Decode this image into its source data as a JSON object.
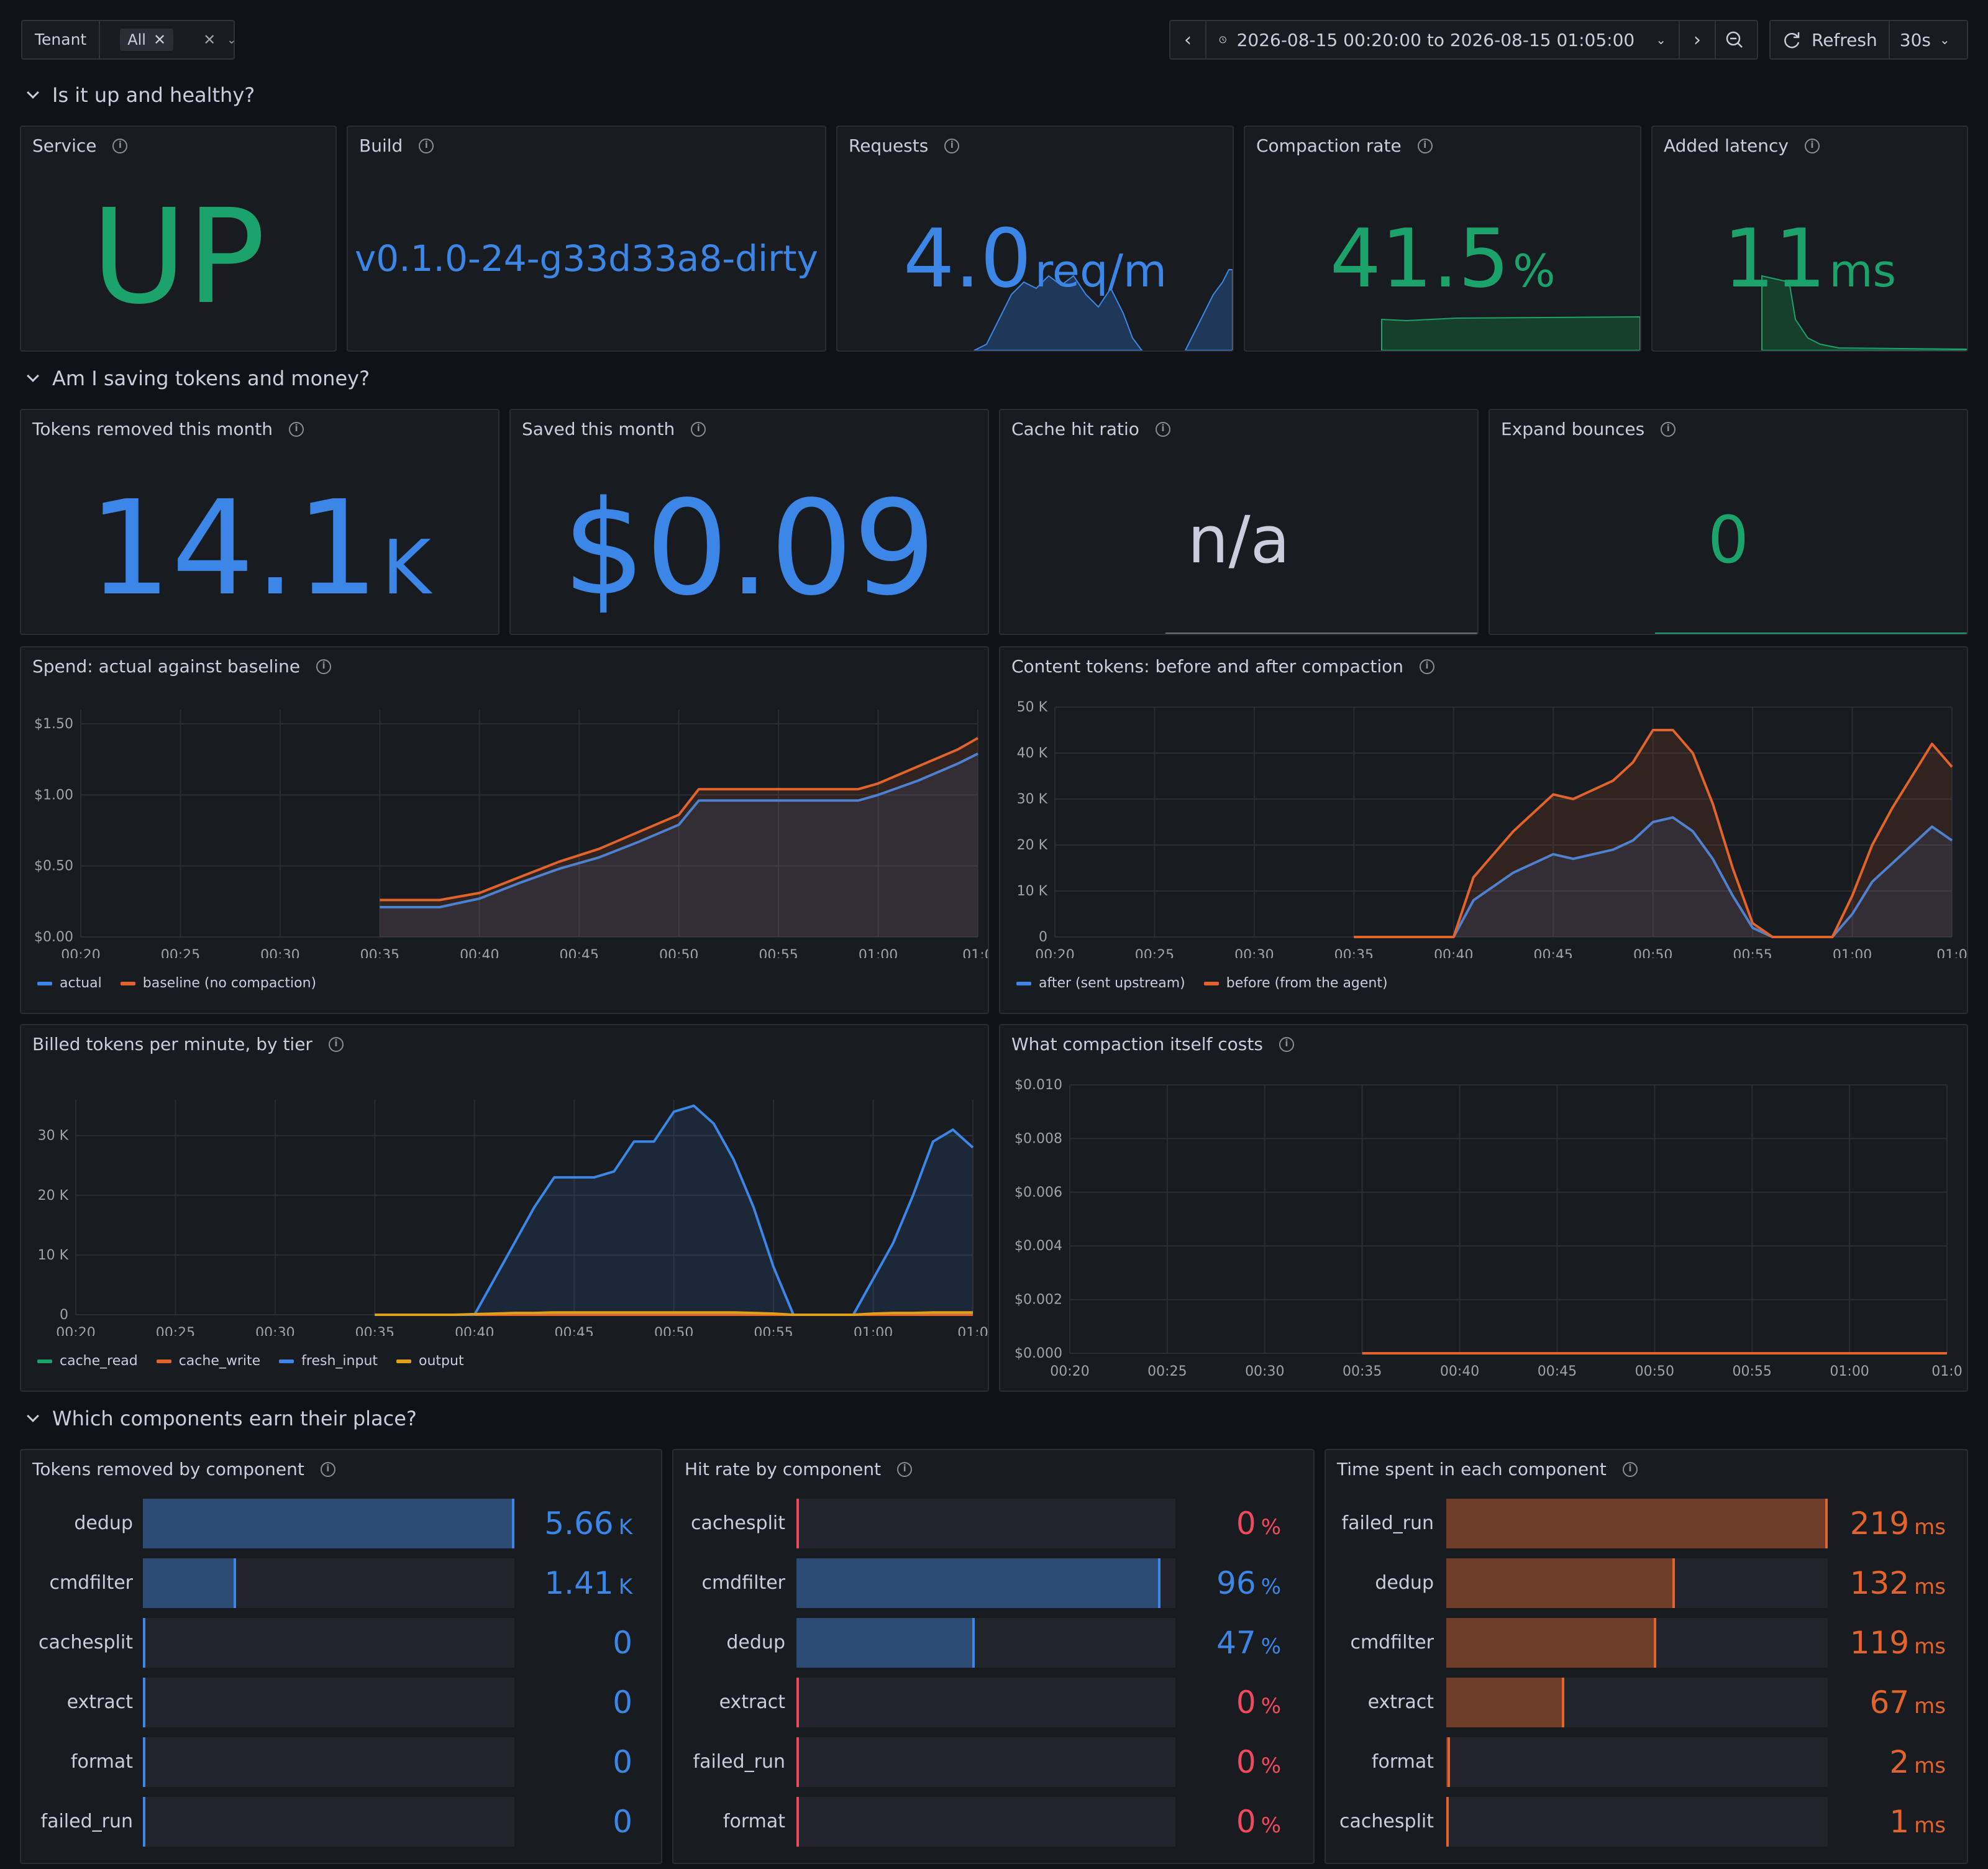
{
  "toolbar": {
    "tenant_label": "Tenant",
    "tenant_value": "All",
    "time_range": "2026-08-15 00:20:00 to 2026-08-15 01:05:00",
    "refresh_label": "Refresh",
    "refresh_interval": "30s"
  },
  "sections": {
    "health": "Is it up and healthy?",
    "savings": "Am I saving tokens and money?",
    "components": "Which components earn their place?"
  },
  "stats": {
    "service": {
      "title": "Service",
      "value": "UP",
      "color": "#1ca36c"
    },
    "build": {
      "title": "Build",
      "value": "v0.1.0-24-g33d33a8-dirty",
      "color": "#3b86e6"
    },
    "requests": {
      "title": "Requests",
      "value": "4.0",
      "unit": "req/m",
      "color": "#3b86e6"
    },
    "compaction": {
      "title": "Compaction rate",
      "value": "41.5",
      "unit": "%",
      "color": "#1ca36c"
    },
    "latency": {
      "title": "Added latency",
      "value": "11",
      "unit": "ms",
      "color": "#1ca36c"
    },
    "tokens_removed": {
      "title": "Tokens removed this month",
      "value": "14.1",
      "unit": "K",
      "color": "#3b86e6"
    },
    "saved": {
      "title": "Saved this month",
      "value": "$0.09",
      "color": "#3b86e6"
    },
    "cache_hit": {
      "title": "Cache hit ratio",
      "value": "n/a",
      "color": "#ccccdc"
    },
    "bounces": {
      "title": "Expand bounces",
      "value": "0",
      "color": "#1ca36c"
    }
  },
  "charts": {
    "spend": {
      "title": "Spend: actual against baseline"
    },
    "content": {
      "title": "Content tokens: before and after compaction"
    },
    "billed": {
      "title": "Billed tokens per minute, by tier"
    },
    "cost": {
      "title": "What compaction itself costs"
    }
  },
  "chart_data": [
    {
      "type": "line",
      "title": "Spend: actual against baseline",
      "x": [
        "00:35",
        "00:38",
        "00:40",
        "00:42",
        "00:44",
        "00:46",
        "00:48",
        "00:50",
        "00:51",
        "00:54",
        "00:56",
        "00:58",
        "00:59",
        "01:00",
        "01:02",
        "01:04",
        "01:05"
      ],
      "x_ticks": [
        "00:20",
        "00:25",
        "00:30",
        "00:35",
        "00:40",
        "00:45",
        "00:50",
        "00:55",
        "01:00",
        "01:0"
      ],
      "y_ticks": [
        "$0.00",
        "$0.50",
        "$1.00",
        "$1.50"
      ],
      "ylim": [
        0,
        1.6
      ],
      "series": [
        {
          "name": "actual",
          "color": "#3b86e6",
          "values": [
            0.21,
            0.21,
            0.27,
            0.38,
            0.48,
            0.56,
            0.67,
            0.79,
            0.96,
            0.96,
            0.96,
            0.96,
            0.96,
            1.0,
            1.1,
            1.22,
            1.29
          ]
        },
        {
          "name": "baseline (no compaction)",
          "color": "#e2642b",
          "values": [
            0.26,
            0.26,
            0.31,
            0.42,
            0.53,
            0.62,
            0.74,
            0.86,
            1.04,
            1.04,
            1.04,
            1.04,
            1.04,
            1.08,
            1.2,
            1.32,
            1.4
          ]
        }
      ]
    },
    {
      "type": "line",
      "title": "Content tokens: before and after compaction",
      "x": [
        "00:35",
        "00:37",
        "00:39",
        "00:40",
        "00:41",
        "00:43",
        "00:45",
        "00:46",
        "00:48",
        "00:49",
        "00:50",
        "00:51",
        "00:52",
        "00:53",
        "00:54",
        "00:55",
        "00:56",
        "00:57",
        "00:58",
        "00:59",
        "01:00",
        "01:01",
        "01:02",
        "01:03",
        "01:04",
        "01:05"
      ],
      "x_ticks": [
        "00:20",
        "00:25",
        "00:30",
        "00:35",
        "00:40",
        "00:45",
        "00:50",
        "00:55",
        "01:00",
        "01:0"
      ],
      "y_ticks": [
        "0",
        "10 K",
        "20 K",
        "30 K",
        "40 K",
        "50 K"
      ],
      "ylim": [
        0,
        50000
      ],
      "series": [
        {
          "name": "after (sent upstream)",
          "color": "#3b86e6",
          "values": [
            0,
            0,
            0,
            0,
            8000,
            14000,
            18000,
            17000,
            19000,
            21000,
            25000,
            26000,
            23000,
            17000,
            9000,
            2000,
            0,
            0,
            0,
            0,
            5000,
            12000,
            16000,
            20000,
            24000,
            21000
          ]
        },
        {
          "name": "before (from the agent)",
          "color": "#e2642b",
          "values": [
            0,
            0,
            0,
            0,
            13000,
            23000,
            31000,
            30000,
            34000,
            38000,
            45000,
            45000,
            40000,
            29000,
            15000,
            3000,
            0,
            0,
            0,
            0,
            9000,
            20000,
            28000,
            35000,
            42000,
            37000
          ]
        }
      ]
    },
    {
      "type": "area",
      "title": "Billed tokens per minute, by tier",
      "x": [
        "00:35",
        "00:39",
        "00:40",
        "00:41",
        "00:42",
        "00:43",
        "00:44",
        "00:45",
        "00:46",
        "00:47",
        "00:48",
        "00:49",
        "00:50",
        "00:51",
        "00:52",
        "00:53",
        "00:54",
        "00:55",
        "00:56",
        "00:57",
        "00:58",
        "00:59",
        "01:00",
        "01:01",
        "01:02",
        "01:03",
        "01:04",
        "01:05"
      ],
      "x_ticks": [
        "00:20",
        "00:25",
        "00:30",
        "00:35",
        "00:40",
        "00:45",
        "00:50",
        "00:55",
        "01:00",
        "01:0"
      ],
      "y_ticks": [
        "0",
        "10 K",
        "20 K",
        "30 K"
      ],
      "ylim": [
        0,
        36000
      ],
      "series": [
        {
          "name": "cache_read",
          "color": "#1ca36c",
          "values": [
            0,
            0,
            0,
            0,
            0,
            0,
            0,
            0,
            0,
            0,
            0,
            0,
            0,
            0,
            0,
            0,
            0,
            0,
            0,
            0,
            0,
            0,
            0,
            0,
            0,
            0,
            0,
            0
          ]
        },
        {
          "name": "cache_write",
          "color": "#e2642b",
          "values": [
            0,
            0,
            0,
            0,
            0,
            0,
            0,
            0,
            0,
            0,
            0,
            0,
            0,
            0,
            0,
            0,
            0,
            0,
            0,
            0,
            0,
            0,
            0,
            0,
            0,
            0,
            0,
            0
          ]
        },
        {
          "name": "fresh_input",
          "color": "#3b86e6",
          "values": [
            0,
            0,
            0,
            6000,
            12000,
            18000,
            23000,
            23000,
            23000,
            24000,
            29000,
            29000,
            34000,
            35000,
            32000,
            26000,
            18000,
            8000,
            0,
            0,
            0,
            0,
            6000,
            12000,
            20000,
            29000,
            31000,
            28000
          ]
        },
        {
          "name": "output",
          "color": "#e0a116",
          "values": [
            0,
            0,
            100,
            200,
            300,
            300,
            400,
            400,
            400,
            400,
            400,
            400,
            400,
            400,
            400,
            400,
            300,
            200,
            0,
            0,
            0,
            0,
            200,
            300,
            300,
            400,
            400,
            400
          ]
        }
      ]
    },
    {
      "type": "line",
      "title": "What compaction itself costs",
      "x": [
        "00:35",
        "00:40",
        "00:45",
        "00:50",
        "00:55",
        "01:00",
        "01:05"
      ],
      "x_ticks": [
        "00:20",
        "00:25",
        "00:30",
        "00:35",
        "00:40",
        "00:45",
        "00:50",
        "00:55",
        "01:00",
        "01:0"
      ],
      "y_ticks": [
        "$0.000",
        "$0.002",
        "$0.004",
        "$0.006",
        "$0.008",
        "$0.010"
      ],
      "ylim": [
        0,
        0.01
      ],
      "series": [
        {
          "name": "",
          "color": "#e2642b",
          "values": [
            0,
            0,
            0,
            0,
            0,
            0,
            0
          ]
        }
      ]
    }
  ],
  "bars": {
    "tokens": {
      "title": "Tokens removed by component",
      "color": "#3b86e6",
      "items": [
        {
          "label": "dedup",
          "value": "5.66",
          "unit": "K",
          "fraction": 1.0
        },
        {
          "label": "cmdfilter",
          "value": "1.41",
          "unit": "K",
          "fraction": 0.25
        },
        {
          "label": "cachesplit",
          "value": "0",
          "unit": "",
          "fraction": 0
        },
        {
          "label": "extract",
          "value": "0",
          "unit": "",
          "fraction": 0
        },
        {
          "label": "format",
          "value": "0",
          "unit": "",
          "fraction": 0
        },
        {
          "label": "failed_run",
          "value": "0",
          "unit": "",
          "fraction": 0
        }
      ]
    },
    "hitrate": {
      "title": "Hit rate by component",
      "items": [
        {
          "label": "cachesplit",
          "value": "0",
          "unit": "%",
          "fraction": 0,
          "color": "#f2495c"
        },
        {
          "label": "cmdfilter",
          "value": "96",
          "unit": "%",
          "fraction": 0.96,
          "color": "#3b86e6"
        },
        {
          "label": "dedup",
          "value": "47",
          "unit": "%",
          "fraction": 0.47,
          "color": "#3b86e6"
        },
        {
          "label": "extract",
          "value": "0",
          "unit": "%",
          "fraction": 0,
          "color": "#f2495c"
        },
        {
          "label": "failed_run",
          "value": "0",
          "unit": "%",
          "fraction": 0,
          "color": "#f2495c"
        },
        {
          "label": "format",
          "value": "0",
          "unit": "%",
          "fraction": 0,
          "color": "#f2495c"
        }
      ]
    },
    "time": {
      "title": "Time spent in each component",
      "color": "#e2642b",
      "items": [
        {
          "label": "failed_run",
          "value": "219",
          "unit": "ms",
          "fraction": 1.0
        },
        {
          "label": "dedup",
          "value": "132",
          "unit": "ms",
          "fraction": 0.6
        },
        {
          "label": "cmdfilter",
          "value": "119",
          "unit": "ms",
          "fraction": 0.55
        },
        {
          "label": "extract",
          "value": "67",
          "unit": "ms",
          "fraction": 0.31
        },
        {
          "label": "format",
          "value": "2",
          "unit": "ms",
          "fraction": 0.01
        },
        {
          "label": "cachesplit",
          "value": "1",
          "unit": "ms",
          "fraction": 0.005
        }
      ]
    }
  }
}
